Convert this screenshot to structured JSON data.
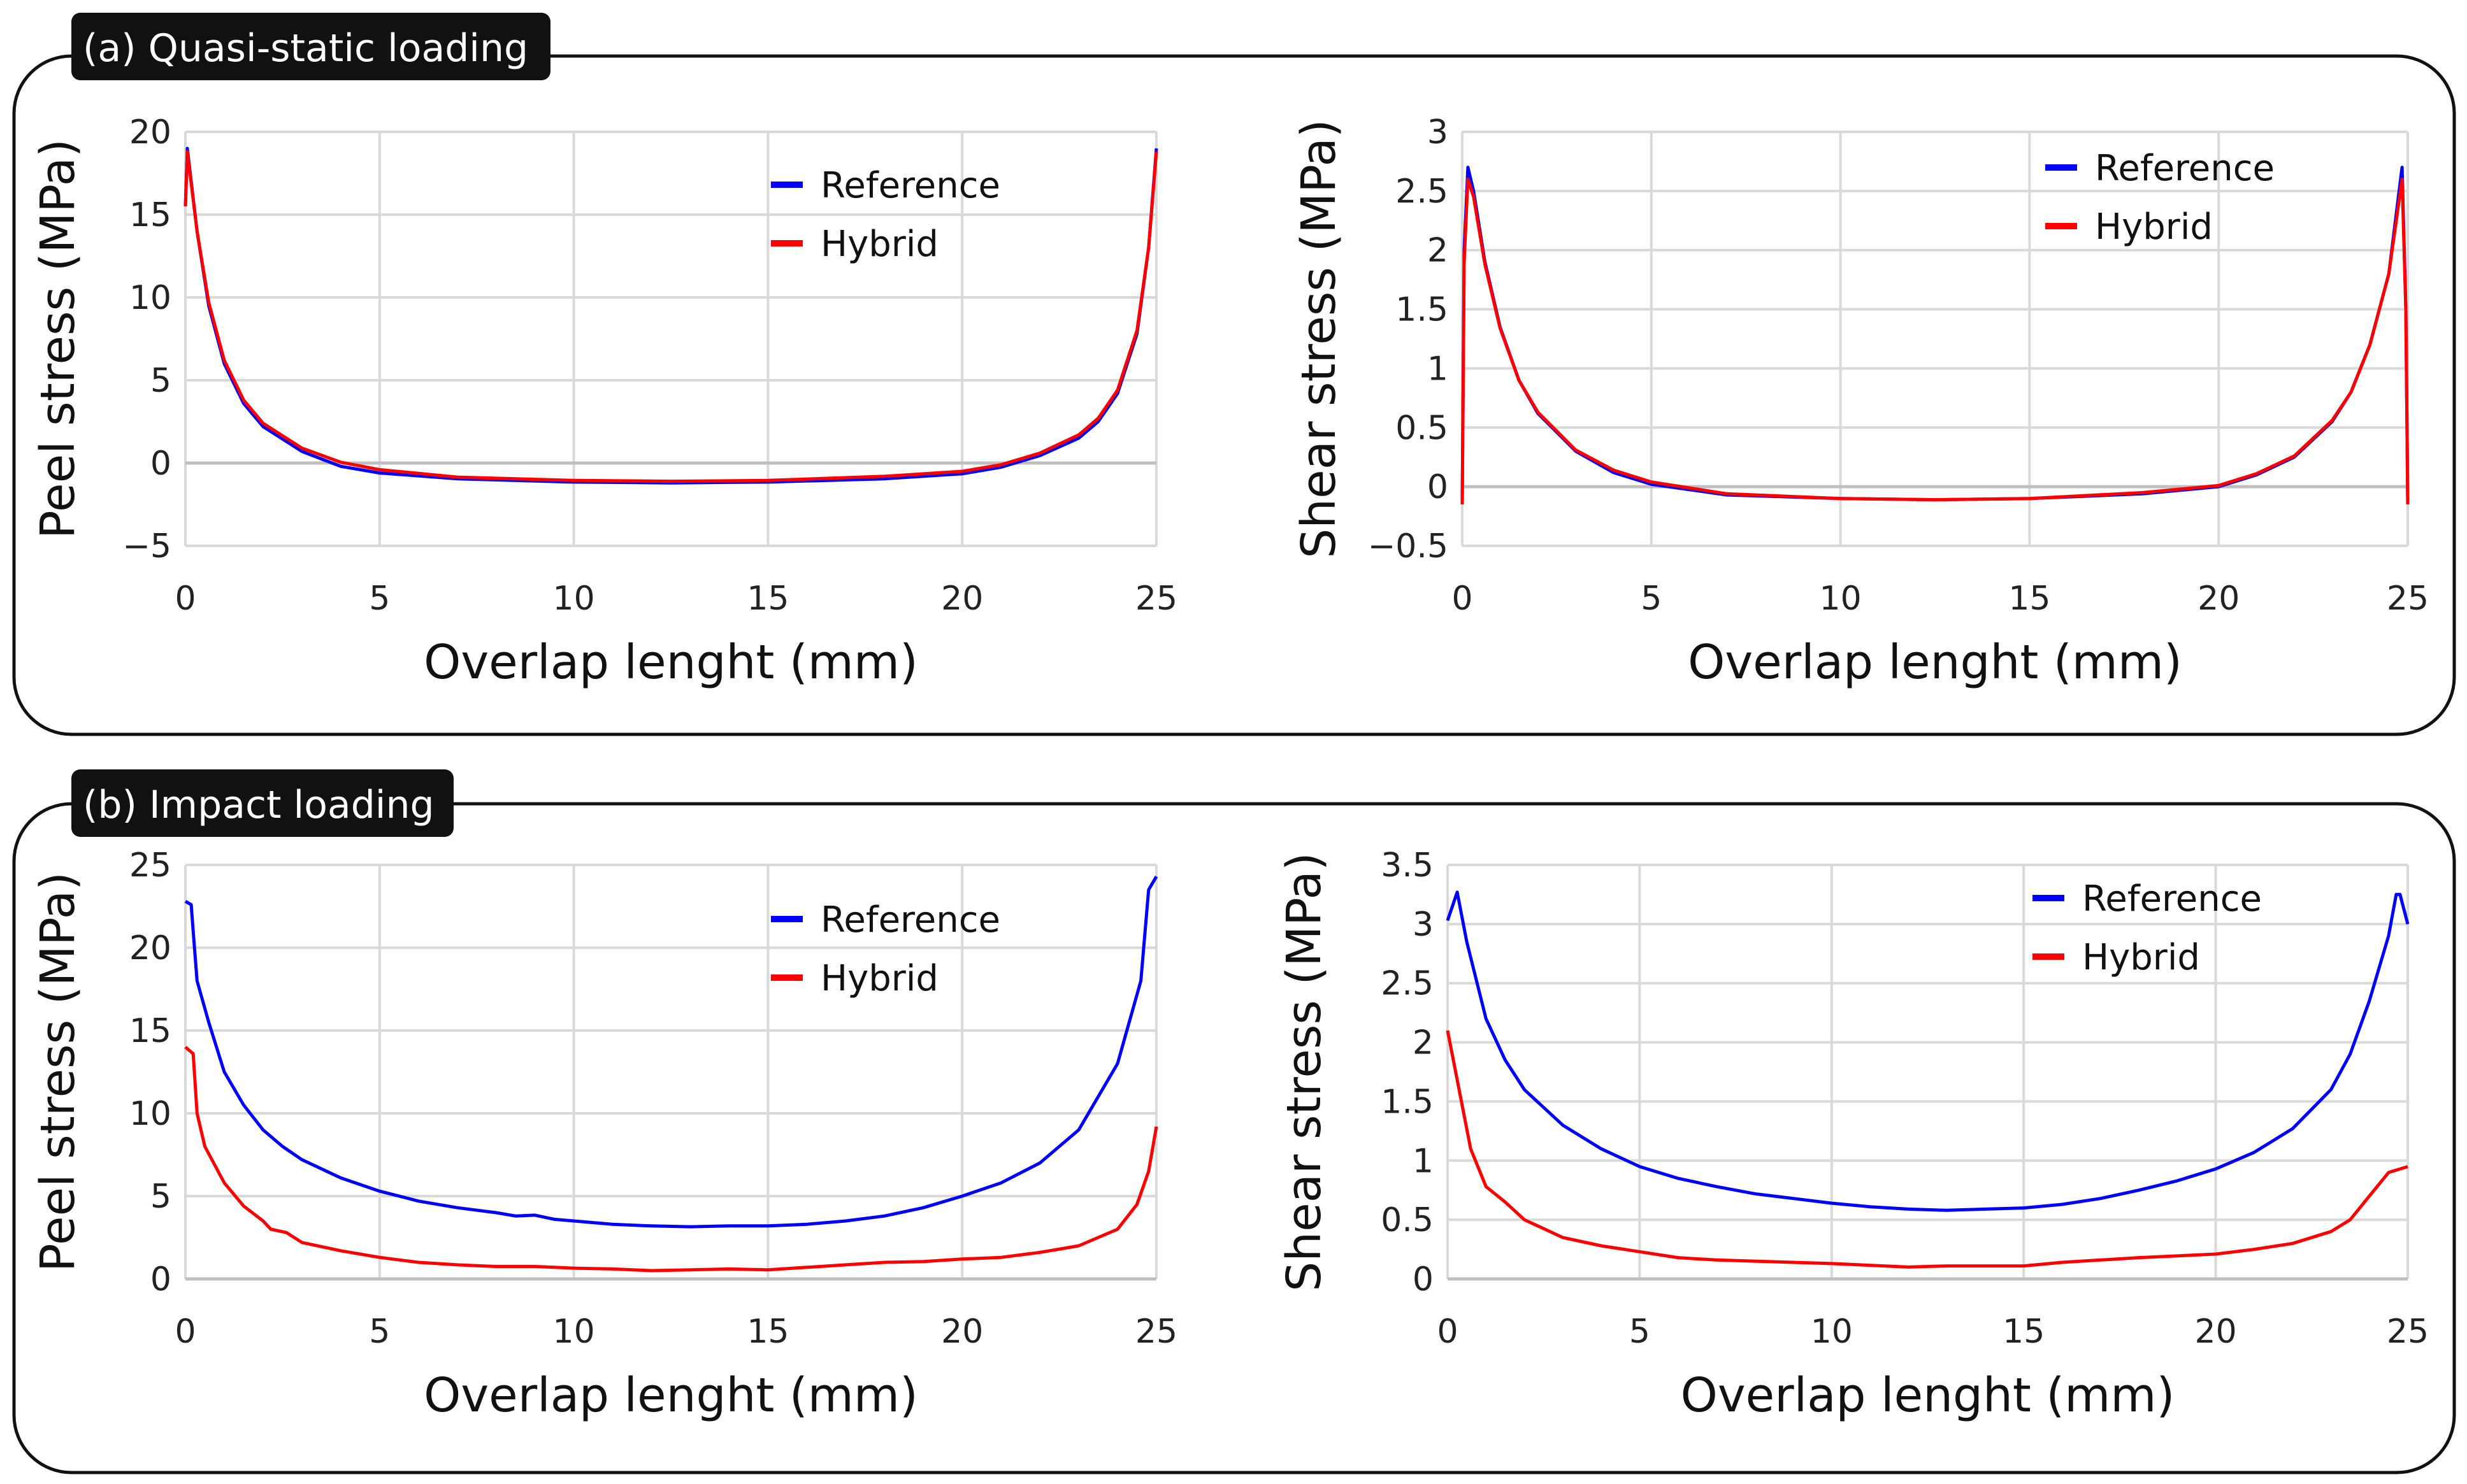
{
  "panels": [
    {
      "label": "(a) Quasi-static loading"
    },
    {
      "label": "(b) Impact loading"
    }
  ],
  "colors": {
    "reference": "#0000ff",
    "hybrid": "#ff0000",
    "grid": "#d9d9d9",
    "label_bg": "#111111"
  },
  "chart_data": [
    {
      "type": "line",
      "panel": 0,
      "title": "",
      "xlabel": "Overlap lenght (mm)",
      "ylabel": "Peel stress (MPa)",
      "xlim": [
        0,
        25
      ],
      "ylim": [
        -5,
        20
      ],
      "grid": true,
      "legend": "top-right",
      "xticks": [
        "0",
        "5",
        "10",
        "15",
        "20",
        "25"
      ],
      "yticks": [
        "−5",
        "0",
        "5",
        "10",
        "15",
        "20"
      ],
      "series": [
        {
          "name": "Reference",
          "color": "#0000ff",
          "points": [
            [
              0,
              15.5
            ],
            [
              0.05,
              19
            ],
            [
              0.3,
              14
            ],
            [
              0.6,
              9.5
            ],
            [
              1,
              6
            ],
            [
              1.5,
              3.6
            ],
            [
              2,
              2.2
            ],
            [
              3,
              0.7
            ],
            [
              4,
              -0.2
            ],
            [
              5,
              -0.6
            ],
            [
              7,
              -0.95
            ],
            [
              10,
              -1.15
            ],
            [
              12.5,
              -1.2
            ],
            [
              15,
              -1.15
            ],
            [
              18,
              -0.95
            ],
            [
              20,
              -0.65
            ],
            [
              21,
              -0.25
            ],
            [
              22,
              0.45
            ],
            [
              23,
              1.5
            ],
            [
              23.5,
              2.5
            ],
            [
              24,
              4.2
            ],
            [
              24.5,
              7.8
            ],
            [
              24.8,
              13
            ],
            [
              25,
              19
            ]
          ]
        },
        {
          "name": "Hybrid",
          "color": "#ff0000",
          "points": [
            [
              0,
              15.5
            ],
            [
              0.05,
              18.8
            ],
            [
              0.3,
              14
            ],
            [
              0.6,
              9.7
            ],
            [
              1,
              6.2
            ],
            [
              1.5,
              3.8
            ],
            [
              2,
              2.4
            ],
            [
              3,
              0.9
            ],
            [
              4,
              0.05
            ],
            [
              5,
              -0.4
            ],
            [
              7,
              -0.85
            ],
            [
              10,
              -1.05
            ],
            [
              12.5,
              -1.1
            ],
            [
              15,
              -1.05
            ],
            [
              18,
              -0.8
            ],
            [
              20,
              -0.5
            ],
            [
              21,
              -0.1
            ],
            [
              22,
              0.6
            ],
            [
              23,
              1.7
            ],
            [
              23.5,
              2.7
            ],
            [
              24,
              4.4
            ],
            [
              24.5,
              8
            ],
            [
              24.8,
              13
            ],
            [
              25,
              18.8
            ]
          ]
        }
      ]
    },
    {
      "type": "line",
      "panel": 0,
      "title": "",
      "xlabel": "Overlap lenght (mm)",
      "ylabel": "Shear stress (MPa)",
      "xlim": [
        0,
        25
      ],
      "ylim": [
        -0.5,
        3
      ],
      "grid": true,
      "legend": "top-right",
      "xticks": [
        "0",
        "5",
        "10",
        "15",
        "20",
        "25"
      ],
      "yticks": [
        "−0.5",
        "0",
        "0.5",
        "1",
        "1.5",
        "2",
        "2.5",
        "3"
      ],
      "series": [
        {
          "name": "Reference",
          "color": "#0000ff",
          "points": [
            [
              0,
              -0.15
            ],
            [
              0.05,
              2
            ],
            [
              0.15,
              2.7
            ],
            [
              0.3,
              2.5
            ],
            [
              0.6,
              1.9
            ],
            [
              1,
              1.35
            ],
            [
              1.5,
              0.9
            ],
            [
              2,
              0.62
            ],
            [
              3,
              0.3
            ],
            [
              4,
              0.12
            ],
            [
              5,
              0.02
            ],
            [
              7,
              -0.07
            ],
            [
              10,
              -0.1
            ],
            [
              12.5,
              -0.11
            ],
            [
              15,
              -0.1
            ],
            [
              18,
              -0.06
            ],
            [
              20,
              0
            ],
            [
              21,
              0.1
            ],
            [
              22,
              0.25
            ],
            [
              23,
              0.55
            ],
            [
              23.5,
              0.8
            ],
            [
              24,
              1.2
            ],
            [
              24.5,
              1.8
            ],
            [
              24.85,
              2.7
            ],
            [
              24.95,
              1.5
            ],
            [
              25,
              -0.15
            ]
          ]
        },
        {
          "name": "Hybrid",
          "color": "#ff0000",
          "points": [
            [
              0,
              -0.15
            ],
            [
              0.05,
              1.9
            ],
            [
              0.15,
              2.6
            ],
            [
              0.3,
              2.45
            ],
            [
              0.6,
              1.88
            ],
            [
              1,
              1.34
            ],
            [
              1.5,
              0.9
            ],
            [
              2,
              0.63
            ],
            [
              3,
              0.31
            ],
            [
              4,
              0.14
            ],
            [
              5,
              0.04
            ],
            [
              7,
              -0.06
            ],
            [
              10,
              -0.1
            ],
            [
              12.5,
              -0.11
            ],
            [
              15,
              -0.1
            ],
            [
              18,
              -0.05
            ],
            [
              20,
              0.01
            ],
            [
              21,
              0.11
            ],
            [
              22,
              0.26
            ],
            [
              23,
              0.56
            ],
            [
              23.5,
              0.8
            ],
            [
              24,
              1.2
            ],
            [
              24.5,
              1.8
            ],
            [
              24.85,
              2.6
            ],
            [
              24.95,
              1.5
            ],
            [
              25,
              -0.15
            ]
          ]
        }
      ]
    },
    {
      "type": "line",
      "panel": 1,
      "title": "",
      "xlabel": "Overlap lenght (mm)",
      "ylabel": "Peel stress (MPa)",
      "xlim": [
        0,
        25
      ],
      "ylim": [
        0,
        25
      ],
      "grid": true,
      "legend": "top-right",
      "xticks": [
        "0",
        "5",
        "10",
        "15",
        "20",
        "25"
      ],
      "yticks": [
        "0",
        "5",
        "10",
        "15",
        "20",
        "25"
      ],
      "series": [
        {
          "name": "Reference",
          "color": "#0000ff",
          "points": [
            [
              0,
              22.8
            ],
            [
              0.15,
              22.6
            ],
            [
              0.2,
              21
            ],
            [
              0.3,
              18
            ],
            [
              0.6,
              15.5
            ],
            [
              1,
              12.5
            ],
            [
              1.5,
              10.5
            ],
            [
              2,
              9
            ],
            [
              2.5,
              8
            ],
            [
              3,
              7.2
            ],
            [
              4,
              6.1
            ],
            [
              5,
              5.3
            ],
            [
              6,
              4.7
            ],
            [
              7,
              4.3
            ],
            [
              8,
              4
            ],
            [
              8.5,
              3.8
            ],
            [
              9,
              3.85
            ],
            [
              9.5,
              3.6
            ],
            [
              10,
              3.5
            ],
            [
              11,
              3.3
            ],
            [
              12,
              3.2
            ],
            [
              13,
              3.15
            ],
            [
              14,
              3.2
            ],
            [
              15,
              3.2
            ],
            [
              16,
              3.3
            ],
            [
              17,
              3.5
            ],
            [
              18,
              3.8
            ],
            [
              19,
              4.3
            ],
            [
              20,
              5
            ],
            [
              21,
              5.8
            ],
            [
              22,
              7
            ],
            [
              23,
              9
            ],
            [
              24,
              13
            ],
            [
              24.6,
              18
            ],
            [
              24.8,
              23.5
            ],
            [
              25,
              24.3
            ]
          ]
        },
        {
          "name": "Hybrid",
          "color": "#ff0000",
          "points": [
            [
              0,
              14
            ],
            [
              0.2,
              13.6
            ],
            [
              0.3,
              10
            ],
            [
              0.5,
              8
            ],
            [
              1,
              5.8
            ],
            [
              1.5,
              4.4
            ],
            [
              2,
              3.5
            ],
            [
              2.2,
              3
            ],
            [
              2.6,
              2.8
            ],
            [
              3,
              2.2
            ],
            [
              4,
              1.7
            ],
            [
              5,
              1.3
            ],
            [
              6,
              1
            ],
            [
              7,
              0.85
            ],
            [
              8,
              0.75
            ],
            [
              9,
              0.75
            ],
            [
              10,
              0.65
            ],
            [
              11,
              0.6
            ],
            [
              12,
              0.5
            ],
            [
              13,
              0.55
            ],
            [
              14,
              0.6
            ],
            [
              15,
              0.55
            ],
            [
              16,
              0.7
            ],
            [
              17,
              0.85
            ],
            [
              18,
              1
            ],
            [
              19,
              1.05
            ],
            [
              20,
              1.2
            ],
            [
              21,
              1.3
            ],
            [
              22,
              1.6
            ],
            [
              23,
              2
            ],
            [
              24,
              3
            ],
            [
              24.5,
              4.5
            ],
            [
              24.8,
              6.5
            ],
            [
              25,
              9.2
            ]
          ]
        }
      ]
    },
    {
      "type": "line",
      "panel": 1,
      "title": "",
      "xlabel": "Overlap lenght (mm)",
      "ylabel": "Shear stress (MPa)",
      "xlim": [
        0,
        25
      ],
      "ylim": [
        0,
        3.5
      ],
      "grid": true,
      "legend": "top-right",
      "xticks": [
        "0",
        "5",
        "10",
        "15",
        "20",
        "25"
      ],
      "yticks": [
        "0",
        "0.5",
        "1",
        "1.5",
        "2",
        "2.5",
        "3",
        "3.5"
      ],
      "series": [
        {
          "name": "Reference",
          "color": "#0000ff",
          "points": [
            [
              0,
              3.03
            ],
            [
              0.25,
              3.27
            ],
            [
              0.5,
              2.85
            ],
            [
              1,
              2.2
            ],
            [
              1.5,
              1.85
            ],
            [
              2,
              1.6
            ],
            [
              3,
              1.3
            ],
            [
              4,
              1.1
            ],
            [
              5,
              0.95
            ],
            [
              6,
              0.85
            ],
            [
              7,
              0.78
            ],
            [
              8,
              0.72
            ],
            [
              9,
              0.68
            ],
            [
              10,
              0.64
            ],
            [
              11,
              0.61
            ],
            [
              12,
              0.59
            ],
            [
              13,
              0.58
            ],
            [
              14,
              0.59
            ],
            [
              15,
              0.6
            ],
            [
              16,
              0.63
            ],
            [
              17,
              0.68
            ],
            [
              18,
              0.75
            ],
            [
              19,
              0.83
            ],
            [
              20,
              0.93
            ],
            [
              21,
              1.07
            ],
            [
              22,
              1.27
            ],
            [
              23,
              1.6
            ],
            [
              23.5,
              1.9
            ],
            [
              24,
              2.35
            ],
            [
              24.5,
              2.9
            ],
            [
              24.7,
              3.25
            ],
            [
              24.8,
              3.25
            ],
            [
              25,
              3.0
            ]
          ]
        },
        {
          "name": "Hybrid",
          "color": "#ff0000",
          "points": [
            [
              0,
              2.1
            ],
            [
              0.3,
              1.6
            ],
            [
              0.6,
              1.1
            ],
            [
              1,
              0.78
            ],
            [
              1.5,
              0.65
            ],
            [
              2,
              0.5
            ],
            [
              3,
              0.35
            ],
            [
              4,
              0.28
            ],
            [
              5,
              0.23
            ],
            [
              6,
              0.18
            ],
            [
              7,
              0.16
            ],
            [
              8,
              0.15
            ],
            [
              10,
              0.13
            ],
            [
              12,
              0.1
            ],
            [
              13,
              0.11
            ],
            [
              15,
              0.11
            ],
            [
              16,
              0.14
            ],
            [
              18,
              0.18
            ],
            [
              20,
              0.21
            ],
            [
              21,
              0.25
            ],
            [
              22,
              0.3
            ],
            [
              23,
              0.4
            ],
            [
              23.5,
              0.5
            ],
            [
              24,
              0.7
            ],
            [
              24.5,
              0.9
            ],
            [
              25,
              0.95
            ]
          ]
        }
      ]
    }
  ]
}
